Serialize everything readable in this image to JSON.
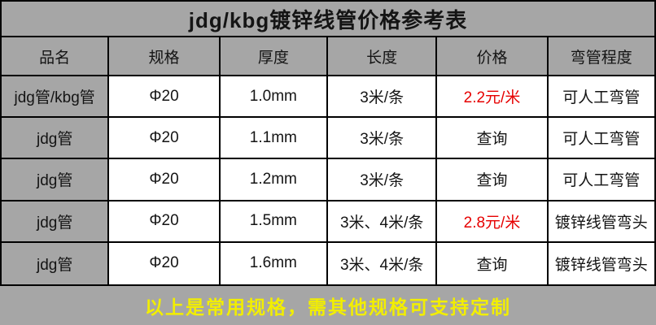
{
  "chart_data": {
    "type": "table",
    "title": "jdg/kbg镀锌线管价格参考表",
    "columns": [
      "品名",
      "规格",
      "厚度",
      "长度",
      "价格",
      "弯管程度"
    ],
    "rows": [
      [
        "jdg管/kbg管",
        "Φ20",
        "1.0mm",
        "3米/条",
        "2.2元/米",
        "可人工弯管"
      ],
      [
        "jdg管",
        "Φ20",
        "1.1mm",
        "3米/条",
        "查询",
        "可人工弯管"
      ],
      [
        "jdg管",
        "Φ20",
        "1.2mm",
        "3米/条",
        "查询",
        "可人工弯管"
      ],
      [
        "jdg管",
        "Φ20",
        "1.5mm",
        "3米、4米/条",
        "2.8元/米",
        "镀锌线管弯头"
      ],
      [
        "jdg管",
        "Φ20",
        "1.6mm",
        "3米、4米/条",
        "查询",
        "镀锌线管弯头"
      ]
    ],
    "price_column_index": 4,
    "highlighted_price_rows": [
      0,
      3
    ],
    "footer_note": "以上是常用规格，需其他规格可支持定制",
    "layout_hints": {
      "first_column_background": "gray",
      "grid": "on",
      "title_position": "top-center",
      "footer_position": "bottom-center"
    }
  },
  "colors": {
    "background_gray": "#a6a6a6",
    "cell_white": "#ffffff",
    "border_black": "#000000",
    "price_red": "#e60000",
    "footer_yellow": "#f2ee00",
    "text_black": "#141414"
  }
}
